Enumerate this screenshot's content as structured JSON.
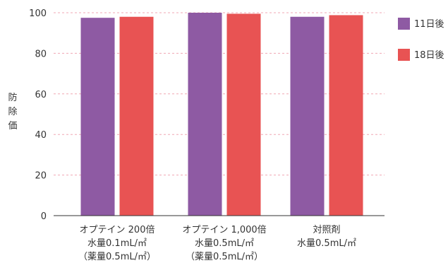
{
  "chart_data": {
    "type": "bar",
    "ylabel": "防除価",
    "ylim": [
      0,
      100
    ],
    "yticks": [
      0,
      20,
      40,
      60,
      80,
      100
    ],
    "grid": true,
    "legend_position": "right",
    "categories": [
      [
        "オプテイン 200倍",
        "水量0.1mL/㎡",
        "（薬量0.5mL/㎡）"
      ],
      [
        "オプテイン 1,000倍",
        "水量0.5mL/㎡",
        "（薬量0.5mL/㎡）"
      ],
      [
        "対照剤",
        "水量0.5mL/㎡"
      ]
    ],
    "series": [
      {
        "name": "11日後",
        "color": "#8e5aa3",
        "values": [
          97.5,
          100,
          98
        ]
      },
      {
        "name": "18日後",
        "color": "#e85353",
        "values": [
          98,
          99.5,
          98.8
        ]
      }
    ]
  }
}
